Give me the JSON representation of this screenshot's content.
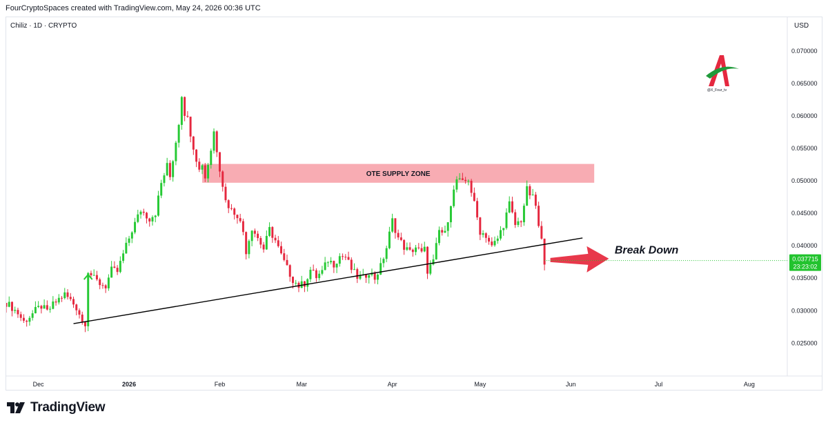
{
  "header": {
    "text": "FourCryptoSpaces created with TradingView.com, May 24, 2026 00:36 UTC"
  },
  "symbol": {
    "name": "Chiliz",
    "interval": "1D",
    "exchange": "CRYPTO"
  },
  "footer": {
    "brand": "TradingView"
  },
  "colors": {
    "up": "#26c934",
    "down": "#e5283f",
    "zone": "#f7a3ab",
    "price_tag": "#22c32e",
    "arrow": "#e8384b"
  },
  "chart_data": {
    "type": "candlestick",
    "currency": "USD",
    "y_ticks": [
      "0.070000",
      "0.065000",
      "0.060000",
      "0.055000",
      "0.050000",
      "0.045000",
      "0.040000",
      "0.035000",
      "0.030000",
      "0.025000"
    ],
    "x_ticks": [
      "Dec",
      "2026",
      "Feb",
      "Mar",
      "Apr",
      "May",
      "Jun",
      "Jul",
      "Aug"
    ],
    "x_range": [
      "2025-11-20",
      "2026-08-14"
    ],
    "y_range": [
      0.021,
      0.072
    ],
    "grid": false,
    "close_series": [
      [
        "2025-11-20",
        0.0312
      ],
      [
        "2025-11-22",
        0.0305
      ],
      [
        "2025-11-24",
        0.0296
      ],
      [
        "2025-11-26",
        0.0283
      ],
      [
        "2025-11-28",
        0.0291
      ],
      [
        "2025-11-30",
        0.03
      ],
      [
        "2025-12-02",
        0.0307
      ],
      [
        "2025-12-04",
        0.0298
      ],
      [
        "2025-12-06",
        0.0309
      ],
      [
        "2025-12-08",
        0.0318
      ],
      [
        "2025-12-10",
        0.0325
      ],
      [
        "2025-12-12",
        0.0316
      ],
      [
        "2025-12-14",
        0.0305
      ],
      [
        "2025-12-15",
        0.0296
      ],
      [
        "2025-12-16",
        0.0283
      ],
      [
        "2025-12-17",
        0.0282
      ],
      [
        "2025-12-18",
        0.0362
      ],
      [
        "2025-12-20",
        0.0349
      ],
      [
        "2025-12-22",
        0.0342
      ],
      [
        "2025-12-24",
        0.0338
      ],
      [
        "2025-12-26",
        0.0362
      ],
      [
        "2025-12-28",
        0.036
      ],
      [
        "2025-12-30",
        0.0387
      ],
      [
        "2026-01-02",
        0.0424
      ],
      [
        "2026-01-05",
        0.0455
      ],
      [
        "2026-01-08",
        0.0442
      ],
      [
        "2026-01-10",
        0.0451
      ],
      [
        "2026-01-12",
        0.0496
      ],
      [
        "2026-01-14",
        0.0523
      ],
      [
        "2026-01-15",
        0.0506
      ],
      [
        "2026-01-17",
        0.0561
      ],
      [
        "2026-01-18",
        0.059
      ],
      [
        "2026-01-19",
        0.0633
      ],
      [
        "2026-01-20",
        0.0605
      ],
      [
        "2026-01-21",
        0.0595
      ],
      [
        "2026-01-23",
        0.0553
      ],
      [
        "2026-01-25",
        0.0516
      ],
      [
        "2026-01-26",
        0.0527
      ],
      [
        "2026-01-27",
        0.0505
      ],
      [
        "2026-01-29",
        0.0548
      ],
      [
        "2026-01-30",
        0.0576
      ],
      [
        "2026-02-01",
        0.052
      ],
      [
        "2026-02-03",
        0.0469
      ],
      [
        "2026-02-05",
        0.0455
      ],
      [
        "2026-02-07",
        0.0448
      ],
      [
        "2026-02-09",
        0.0422
      ],
      [
        "2026-02-10",
        0.0392
      ],
      [
        "2026-02-12",
        0.0428
      ],
      [
        "2026-02-14",
        0.0412
      ],
      [
        "2026-02-16",
        0.0395
      ],
      [
        "2026-02-18",
        0.0425
      ],
      [
        "2026-02-20",
        0.0408
      ],
      [
        "2026-02-22",
        0.0385
      ],
      [
        "2026-02-24",
        0.0365
      ],
      [
        "2026-02-26",
        0.0348
      ],
      [
        "2026-02-28",
        0.0338
      ],
      [
        "2026-03-02",
        0.0342
      ],
      [
        "2026-03-04",
        0.0363
      ],
      [
        "2026-03-06",
        0.0352
      ],
      [
        "2026-03-08",
        0.036
      ],
      [
        "2026-03-10",
        0.0378
      ],
      [
        "2026-03-12",
        0.0372
      ],
      [
        "2026-03-14",
        0.0384
      ],
      [
        "2026-03-16",
        0.0383
      ],
      [
        "2026-03-18",
        0.0364
      ],
      [
        "2026-03-20",
        0.0352
      ],
      [
        "2026-03-22",
        0.035
      ],
      [
        "2026-03-24",
        0.0361
      ],
      [
        "2026-03-26",
        0.035
      ],
      [
        "2026-03-28",
        0.0368
      ],
      [
        "2026-03-30",
        0.0397
      ],
      [
        "2026-04-01",
        0.0439
      ],
      [
        "2026-04-03",
        0.0412
      ],
      [
        "2026-04-05",
        0.0398
      ],
      [
        "2026-04-07",
        0.039
      ],
      [
        "2026-04-09",
        0.0398
      ],
      [
        "2026-04-11",
        0.0388
      ],
      [
        "2026-04-12",
        0.0394
      ],
      [
        "2026-04-13",
        0.0362
      ],
      [
        "2026-04-15",
        0.0375
      ],
      [
        "2026-04-17",
        0.0423
      ],
      [
        "2026-04-19",
        0.0418
      ],
      [
        "2026-04-21",
        0.0466
      ],
      [
        "2026-04-23",
        0.0502
      ],
      [
        "2026-04-25",
        0.0496
      ],
      [
        "2026-04-27",
        0.0503
      ],
      [
        "2026-04-29",
        0.0464
      ],
      [
        "2026-05-01",
        0.0422
      ],
      [
        "2026-05-03",
        0.0416
      ],
      [
        "2026-05-05",
        0.0398
      ],
      [
        "2026-05-07",
        0.0411
      ],
      [
        "2026-05-09",
        0.0433
      ],
      [
        "2026-05-11",
        0.0464
      ],
      [
        "2026-05-13",
        0.0432
      ],
      [
        "2026-05-15",
        0.044
      ],
      [
        "2026-05-17",
        0.0486
      ],
      [
        "2026-05-19",
        0.0473
      ],
      [
        "2026-05-20",
        0.0462
      ],
      [
        "2026-05-21",
        0.0428
      ],
      [
        "2026-05-22",
        0.0407
      ],
      [
        "2026-05-23",
        0.0377
      ]
    ],
    "last_price": "0.037715",
    "countdown": "23:23:02",
    "zone": {
      "label": "OTE SUPPLY ZONE",
      "from": "2026-01-26",
      "to": "2026-06-09",
      "low": 0.0497,
      "high": 0.0526
    },
    "trendline": {
      "from": [
        "2025-12-13",
        0.028
      ],
      "to": [
        "2026-06-05",
        0.0412
      ]
    },
    "annotations": [
      {
        "text": "Break Down",
        "at": [
          "2026-06-16",
          0.0388
        ]
      }
    ],
    "watermark": "@X_Four_tv"
  }
}
